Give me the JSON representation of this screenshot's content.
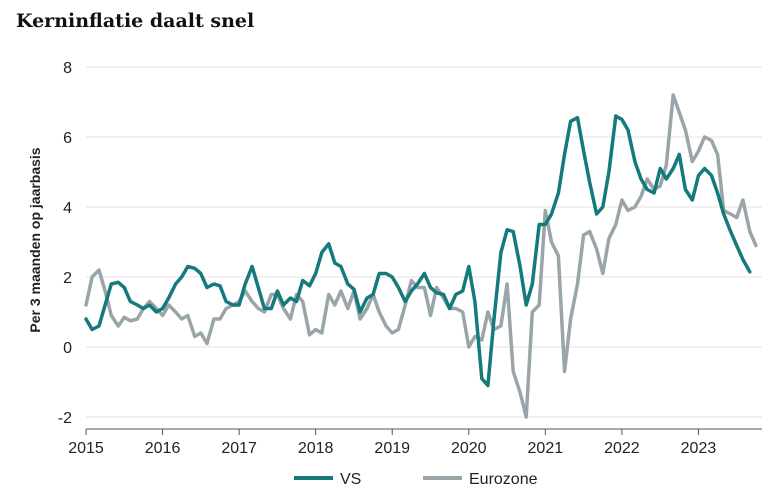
{
  "title": "Kerninflatie daalt snel",
  "chart_data": {
    "type": "line",
    "title": "Kerninflatie daalt snel",
    "ylabel": "Per 3 maanden op jaarbasis",
    "xlabel": "",
    "ylim": [
      -2,
      8
    ],
    "yticks": [
      "-2",
      "0",
      "2",
      "4",
      "6",
      "8"
    ],
    "yticks_values": [
      -2,
      0,
      2,
      4,
      6,
      8
    ],
    "xlim": [
      2015,
      2023.83
    ],
    "xticks": [
      "2015",
      "2016",
      "2017",
      "2018",
      "2019",
      "2020",
      "2021",
      "2022",
      "2023"
    ],
    "xticks_values": [
      2015,
      2016,
      2017,
      2018,
      2019,
      2020,
      2021,
      2022,
      2023
    ],
    "grid": "horizontal",
    "legend_position": "bottom",
    "series": [
      {
        "name": "VS",
        "color": "#157a7c",
        "points": [
          [
            2015.0,
            0.8
          ],
          [
            2015.08,
            0.5
          ],
          [
            2015.17,
            0.6
          ],
          [
            2015.25,
            1.2
          ],
          [
            2015.33,
            1.8
          ],
          [
            2015.42,
            1.85
          ],
          [
            2015.5,
            1.7
          ],
          [
            2015.58,
            1.3
          ],
          [
            2015.67,
            1.2
          ],
          [
            2015.75,
            1.1
          ],
          [
            2015.83,
            1.2
          ],
          [
            2015.92,
            1.0
          ],
          [
            2016.0,
            1.1
          ],
          [
            2016.08,
            1.4
          ],
          [
            2016.17,
            1.8
          ],
          [
            2016.25,
            2.0
          ],
          [
            2016.33,
            2.3
          ],
          [
            2016.42,
            2.25
          ],
          [
            2016.5,
            2.1
          ],
          [
            2016.58,
            1.7
          ],
          [
            2016.67,
            1.8
          ],
          [
            2016.75,
            1.75
          ],
          [
            2016.83,
            1.3
          ],
          [
            2016.92,
            1.2
          ],
          [
            2017.0,
            1.2
          ],
          [
            2017.08,
            1.8
          ],
          [
            2017.17,
            2.3
          ],
          [
            2017.25,
            1.7
          ],
          [
            2017.33,
            1.1
          ],
          [
            2017.42,
            1.1
          ],
          [
            2017.5,
            1.6
          ],
          [
            2017.58,
            1.2
          ],
          [
            2017.67,
            1.4
          ],
          [
            2017.75,
            1.3
          ],
          [
            2017.83,
            1.9
          ],
          [
            2017.92,
            1.75
          ],
          [
            2018.0,
            2.1
          ],
          [
            2018.08,
            2.7
          ],
          [
            2018.17,
            2.95
          ],
          [
            2018.25,
            2.4
          ],
          [
            2018.33,
            2.3
          ],
          [
            2018.42,
            1.8
          ],
          [
            2018.5,
            1.65
          ],
          [
            2018.58,
            1.0
          ],
          [
            2018.67,
            1.4
          ],
          [
            2018.75,
            1.5
          ],
          [
            2018.83,
            2.1
          ],
          [
            2018.92,
            2.1
          ],
          [
            2019.0,
            2.0
          ],
          [
            2019.08,
            1.7
          ],
          [
            2019.17,
            1.3
          ],
          [
            2019.25,
            1.6
          ],
          [
            2019.33,
            1.8
          ],
          [
            2019.42,
            2.1
          ],
          [
            2019.5,
            1.7
          ],
          [
            2019.58,
            1.55
          ],
          [
            2019.67,
            1.5
          ],
          [
            2019.75,
            1.1
          ],
          [
            2019.83,
            1.5
          ],
          [
            2019.92,
            1.6
          ],
          [
            2020.0,
            2.3
          ],
          [
            2020.08,
            1.3
          ],
          [
            2020.17,
            -0.9
          ],
          [
            2020.25,
            -1.1
          ],
          [
            2020.33,
            0.8
          ],
          [
            2020.42,
            2.7
          ],
          [
            2020.5,
            3.35
          ],
          [
            2020.58,
            3.3
          ],
          [
            2020.67,
            2.3
          ],
          [
            2020.75,
            1.2
          ],
          [
            2020.83,
            1.8
          ],
          [
            2020.92,
            3.5
          ],
          [
            2021.0,
            3.5
          ],
          [
            2021.08,
            3.8
          ],
          [
            2021.17,
            4.4
          ],
          [
            2021.25,
            5.5
          ],
          [
            2021.33,
            6.45
          ],
          [
            2021.42,
            6.55
          ],
          [
            2021.5,
            5.6
          ],
          [
            2021.58,
            4.7
          ],
          [
            2021.67,
            3.8
          ],
          [
            2021.75,
            4.0
          ],
          [
            2021.83,
            5.0
          ],
          [
            2021.92,
            6.6
          ],
          [
            2022.0,
            6.5
          ],
          [
            2022.08,
            6.2
          ],
          [
            2022.17,
            5.3
          ],
          [
            2022.25,
            4.8
          ],
          [
            2022.33,
            4.5
          ],
          [
            2022.42,
            4.4
          ],
          [
            2022.5,
            5.1
          ],
          [
            2022.58,
            4.8
          ],
          [
            2022.67,
            5.1
          ],
          [
            2022.75,
            5.5
          ],
          [
            2022.83,
            4.5
          ],
          [
            2022.92,
            4.2
          ],
          [
            2023.0,
            4.9
          ],
          [
            2023.08,
            5.1
          ],
          [
            2023.17,
            4.9
          ],
          [
            2023.25,
            4.4
          ],
          [
            2023.33,
            3.8
          ],
          [
            2023.42,
            3.3
          ],
          [
            2023.5,
            2.9
          ],
          [
            2023.58,
            2.5
          ],
          [
            2023.67,
            2.15
          ]
        ]
      },
      {
        "name": "Eurozone",
        "color": "#99a5a9",
        "points": [
          [
            2015.0,
            1.2
          ],
          [
            2015.08,
            2.0
          ],
          [
            2015.17,
            2.2
          ],
          [
            2015.25,
            1.6
          ],
          [
            2015.33,
            0.9
          ],
          [
            2015.42,
            0.6
          ],
          [
            2015.5,
            0.85
          ],
          [
            2015.58,
            0.75
          ],
          [
            2015.67,
            0.8
          ],
          [
            2015.75,
            1.1
          ],
          [
            2015.83,
            1.3
          ],
          [
            2015.92,
            1.1
          ],
          [
            2016.0,
            0.9
          ],
          [
            2016.08,
            1.2
          ],
          [
            2016.17,
            1.0
          ],
          [
            2016.25,
            0.8
          ],
          [
            2016.33,
            0.9
          ],
          [
            2016.42,
            0.3
          ],
          [
            2016.5,
            0.4
          ],
          [
            2016.58,
            0.1
          ],
          [
            2016.67,
            0.8
          ],
          [
            2016.75,
            0.8
          ],
          [
            2016.83,
            1.1
          ],
          [
            2016.92,
            1.2
          ],
          [
            2017.0,
            1.3
          ],
          [
            2017.08,
            1.6
          ],
          [
            2017.17,
            1.3
          ],
          [
            2017.25,
            1.1
          ],
          [
            2017.33,
            1.0
          ],
          [
            2017.42,
            1.5
          ],
          [
            2017.5,
            1.5
          ],
          [
            2017.58,
            1.1
          ],
          [
            2017.67,
            0.8
          ],
          [
            2017.75,
            1.5
          ],
          [
            2017.83,
            1.3
          ],
          [
            2017.92,
            0.35
          ],
          [
            2018.0,
            0.5
          ],
          [
            2018.08,
            0.4
          ],
          [
            2018.17,
            1.5
          ],
          [
            2018.25,
            1.2
          ],
          [
            2018.33,
            1.6
          ],
          [
            2018.42,
            1.1
          ],
          [
            2018.5,
            1.6
          ],
          [
            2018.58,
            0.8
          ],
          [
            2018.67,
            1.1
          ],
          [
            2018.75,
            1.5
          ],
          [
            2018.83,
            1.0
          ],
          [
            2018.92,
            0.6
          ],
          [
            2019.0,
            0.4
          ],
          [
            2019.08,
            0.5
          ],
          [
            2019.17,
            1.2
          ],
          [
            2019.25,
            1.9
          ],
          [
            2019.33,
            1.7
          ],
          [
            2019.42,
            1.7
          ],
          [
            2019.5,
            0.9
          ],
          [
            2019.58,
            1.7
          ],
          [
            2019.67,
            1.4
          ],
          [
            2019.75,
            1.1
          ],
          [
            2019.83,
            1.1
          ],
          [
            2019.92,
            1.0
          ],
          [
            2020.0,
            0.0
          ],
          [
            2020.08,
            0.3
          ],
          [
            2020.17,
            0.2
          ],
          [
            2020.25,
            1.0
          ],
          [
            2020.33,
            0.5
          ],
          [
            2020.42,
            0.6
          ],
          [
            2020.5,
            1.8
          ],
          [
            2020.58,
            -0.7
          ],
          [
            2020.67,
            -1.3
          ],
          [
            2020.75,
            -2.0
          ],
          [
            2020.83,
            1.0
          ],
          [
            2020.92,
            1.2
          ],
          [
            2021.0,
            3.9
          ],
          [
            2021.08,
            3.0
          ],
          [
            2021.17,
            2.6
          ],
          [
            2021.25,
            -0.7
          ],
          [
            2021.33,
            0.8
          ],
          [
            2021.42,
            1.8
          ],
          [
            2021.5,
            3.2
          ],
          [
            2021.58,
            3.3
          ],
          [
            2021.67,
            2.8
          ],
          [
            2021.75,
            2.1
          ],
          [
            2021.83,
            3.1
          ],
          [
            2021.92,
            3.5
          ],
          [
            2022.0,
            4.2
          ],
          [
            2022.08,
            3.9
          ],
          [
            2022.17,
            4.0
          ],
          [
            2022.25,
            4.3
          ],
          [
            2022.33,
            4.8
          ],
          [
            2022.42,
            4.5
          ],
          [
            2022.5,
            4.6
          ],
          [
            2022.58,
            5.2
          ],
          [
            2022.67,
            7.2
          ],
          [
            2022.75,
            6.7
          ],
          [
            2022.83,
            6.2
          ],
          [
            2022.92,
            5.3
          ],
          [
            2023.0,
            5.6
          ],
          [
            2023.08,
            6.0
          ],
          [
            2023.17,
            5.9
          ],
          [
            2023.25,
            5.5
          ],
          [
            2023.33,
            3.9
          ],
          [
            2023.42,
            3.8
          ],
          [
            2023.5,
            3.7
          ],
          [
            2023.58,
            4.2
          ],
          [
            2023.67,
            3.3
          ],
          [
            2023.75,
            2.9
          ]
        ]
      }
    ]
  }
}
